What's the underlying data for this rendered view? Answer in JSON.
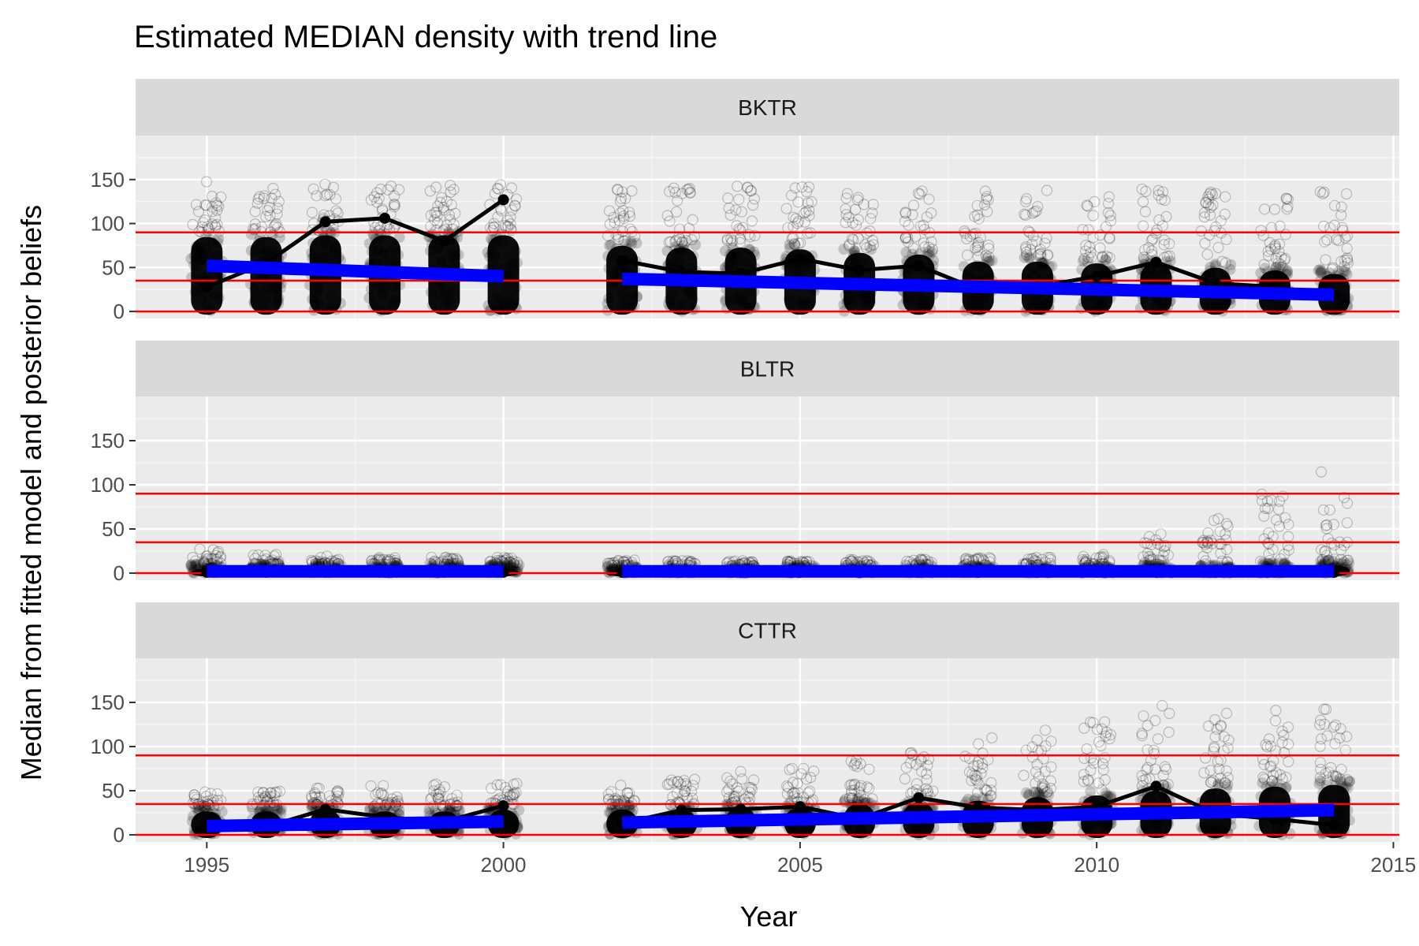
{
  "chart_data": {
    "type": "scatter",
    "title": "Estimated MEDIAN density with trend line",
    "xlabel": "Year",
    "ylabel": "Median from fitted model and posterior beliefs",
    "xlim": [
      1993.8,
      2015.1
    ],
    "ylim": [
      -8,
      200
    ],
    "x_ticks": [
      1995,
      2000,
      2005,
      2010,
      2015
    ],
    "y_ticks": [
      0,
      50,
      100,
      150
    ],
    "grid": true,
    "reference_lines": [
      0,
      35,
      90
    ],
    "colors": {
      "points": "#000000",
      "median_line": "#000000",
      "trend": "#0000ff",
      "reference": "#ff0000",
      "panel_bg": "#ebebeb",
      "strip_bg": "#d9d9d9"
    },
    "years": [
      1995,
      1996,
      1997,
      1998,
      1999,
      2000,
      2002,
      2003,
      2004,
      2005,
      2006,
      2007,
      2008,
      2009,
      2010,
      2011,
      2012,
      2013,
      2014
    ],
    "panels": [
      {
        "name": "BKTR",
        "median": [
          28,
          55,
          102,
          106,
          80,
          127,
          58,
          45,
          43,
          60,
          47,
          52,
          25,
          28,
          40,
          56,
          32,
          28,
          18
        ],
        "trend_segments": [
          {
            "x": [
              1995,
              2000
            ],
            "y": [
              52,
              40
            ]
          },
          {
            "x": [
              2002,
              2014
            ],
            "y": [
              37,
              19
            ]
          }
        ],
        "cloud_main_max": [
          90,
          90,
          92,
          92,
          92,
          92,
          80,
          78,
          78,
          76,
          72,
          70,
          62,
          62,
          60,
          60,
          55,
          52,
          48
        ],
        "cloud_outlier_max": [
          148,
          148,
          148,
          148,
          146,
          146,
          146,
          144,
          144,
          142,
          140,
          140,
          140,
          140,
          142,
          142,
          136,
          134,
          140
        ]
      },
      {
        "name": "BLTR",
        "median": [
          1,
          1,
          1,
          1,
          1,
          1,
          1,
          1,
          1,
          1,
          1,
          1,
          1,
          1,
          1,
          1,
          1,
          1,
          1
        ],
        "trend_segments": [
          {
            "x": [
              1995,
              2000
            ],
            "y": [
              2,
              2
            ]
          },
          {
            "x": [
              2002,
              2014
            ],
            "y": [
              2,
              2
            ]
          }
        ],
        "cloud_main_max": [
          10,
          10,
          10,
          10,
          10,
          10,
          8,
          8,
          8,
          8,
          8,
          8,
          8,
          8,
          8,
          10,
          10,
          12,
          14
        ],
        "cloud_outlier_max": [
          28,
          22,
          20,
          18,
          18,
          18,
          15,
          14,
          14,
          14,
          16,
          16,
          18,
          18,
          22,
          45,
          65,
          90,
          118
        ]
      },
      {
        "name": "CTTR",
        "median": [
          8,
          9,
          29,
          20,
          15,
          33,
          13,
          28,
          29,
          32,
          18,
          42,
          31,
          28,
          32,
          55,
          24,
          18,
          11
        ],
        "trend_segments": [
          {
            "x": [
              1995,
              2000
            ],
            "y": [
              10,
              15
            ]
          },
          {
            "x": [
              2002,
              2014
            ],
            "y": [
              14,
              28
            ]
          }
        ],
        "cloud_main_max": [
          32,
          32,
          34,
          32,
          32,
          34,
          34,
          34,
          36,
          36,
          40,
          42,
          44,
          48,
          50,
          55,
          58,
          60,
          62
        ],
        "cloud_outlier_max": [
          50,
          50,
          55,
          58,
          58,
          62,
          60,
          65,
          72,
          78,
          85,
          95,
          110,
          125,
          130,
          148,
          140,
          142,
          145
        ]
      }
    ]
  }
}
